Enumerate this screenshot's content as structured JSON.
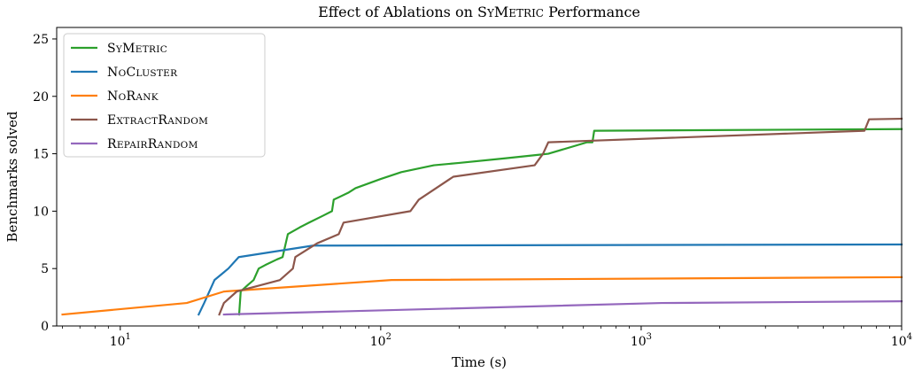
{
  "chart_data": {
    "type": "line",
    "title": "Effect of Ablations on SyMetric Performance",
    "xlabel": "Time (s)",
    "ylabel": "Benchmarks solved",
    "x_scale": "log",
    "xlim": [
      5.7,
      10000
    ],
    "ylim": [
      0,
      26
    ],
    "x_ticks": [
      10,
      100,
      1000,
      10000
    ],
    "x_tick_labels": [
      {
        "base": "10",
        "exp": "1"
      },
      {
        "base": "10",
        "exp": "2"
      },
      {
        "base": "10",
        "exp": "3"
      },
      {
        "base": "10",
        "exp": "4"
      }
    ],
    "y_ticks": [
      0,
      5,
      10,
      15,
      20,
      25
    ],
    "y_tick_labels": [
      "0",
      "5",
      "10",
      "15",
      "20",
      "25"
    ],
    "grid": false,
    "legend_position": "top-left",
    "series": [
      {
        "name": "SyMetric",
        "color": "#2ca02c",
        "points": [
          [
            28.6,
            1
          ],
          [
            28.8,
            2
          ],
          [
            29,
            3
          ],
          [
            31,
            3.6
          ],
          [
            32.5,
            4
          ],
          [
            34,
            5
          ],
          [
            36,
            5.3
          ],
          [
            40,
            5.8
          ],
          [
            42,
            6
          ],
          [
            44,
            8
          ],
          [
            49,
            8.6
          ],
          [
            53,
            9
          ],
          [
            60,
            9.6
          ],
          [
            65,
            10
          ],
          [
            66,
            11
          ],
          [
            75,
            11.6
          ],
          [
            80,
            12
          ],
          [
            100,
            12.8
          ],
          [
            120,
            13.4
          ],
          [
            160,
            14
          ],
          [
            200,
            14.2
          ],
          [
            300,
            14.6
          ],
          [
            400,
            14.9
          ],
          [
            440,
            15
          ],
          [
            620,
            16
          ],
          [
            650,
            16
          ],
          [
            660,
            17
          ],
          [
            10000,
            17.15
          ]
        ]
      },
      {
        "name": "NoCluster",
        "color": "#1f77b4",
        "points": [
          [
            20,
            1
          ],
          [
            21,
            2
          ],
          [
            23,
            4
          ],
          [
            26,
            5
          ],
          [
            28.5,
            6
          ],
          [
            55,
            7
          ],
          [
            10000,
            7.1
          ]
        ]
      },
      {
        "name": "NoRank",
        "color": "#ff7f0e",
        "points": [
          [
            6,
            1
          ],
          [
            18,
            2
          ],
          [
            25,
            3
          ],
          [
            110,
            4
          ],
          [
            10000,
            4.25
          ]
        ]
      },
      {
        "name": "ExtractRandom",
        "color": "#8c564b",
        "points": [
          [
            24,
            1
          ],
          [
            25,
            2
          ],
          [
            28,
            3
          ],
          [
            41,
            4
          ],
          [
            46,
            5
          ],
          [
            47,
            6
          ],
          [
            57,
            7.2
          ],
          [
            69,
            8
          ],
          [
            72,
            9
          ],
          [
            130,
            10
          ],
          [
            140,
            11
          ],
          [
            190,
            13
          ],
          [
            390,
            14
          ],
          [
            420,
            15
          ],
          [
            440,
            16
          ],
          [
            7200,
            17
          ],
          [
            7500,
            18
          ],
          [
            10000,
            18.05
          ]
        ]
      },
      {
        "name": "RepairRandom",
        "color": "#9467bd",
        "points": [
          [
            25,
            1
          ],
          [
            1200,
            2
          ],
          [
            10000,
            2.15
          ]
        ]
      }
    ]
  }
}
